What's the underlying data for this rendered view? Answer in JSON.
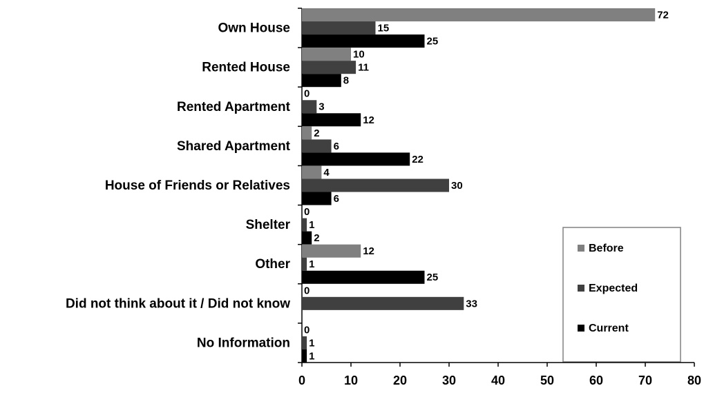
{
  "chart_data": {
    "type": "bar",
    "orientation": "horizontal",
    "categories": [
      "Own House",
      "Rented House",
      "Rented Apartment",
      "Shared Apartment",
      "House of Friends or Relatives",
      "Shelter",
      "Other",
      "Did not think about it / Did not know",
      "No Information"
    ],
    "series": [
      {
        "name": "Before",
        "color": "#808080",
        "values": [
          72,
          10,
          0,
          2,
          4,
          0,
          12,
          0,
          0
        ]
      },
      {
        "name": "Expected",
        "color": "#404040",
        "values": [
          15,
          11,
          3,
          6,
          30,
          1,
          1,
          33,
          1
        ]
      },
      {
        "name": "Current",
        "color": "#000000",
        "values": [
          25,
          8,
          12,
          22,
          6,
          2,
          25,
          null,
          1
        ]
      }
    ],
    "xlim": [
      0,
      80
    ],
    "xticks": [
      0,
      10,
      20,
      30,
      40,
      50,
      60,
      70,
      80
    ],
    "grid": false,
    "legend": "lower right"
  }
}
